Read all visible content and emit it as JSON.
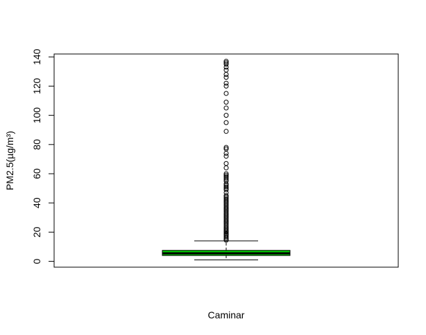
{
  "chart_data": {
    "type": "boxplot",
    "title": "",
    "xlabel": "Caminar",
    "ylabel": "PM2.5(µg/m³)",
    "ylim": [
      -4,
      142
    ],
    "yticks": [
      0,
      20,
      40,
      60,
      80,
      100,
      120,
      140
    ],
    "box_fill": "#00cc00",
    "box": {
      "lower_whisker": 1,
      "q1": 4,
      "median": 5.5,
      "q3": 7.5,
      "upper_whisker": 14
    },
    "outliers": [
      14.5,
      15.2,
      16,
      17,
      18,
      18.8,
      19.5,
      20.3,
      21,
      22,
      23,
      24,
      25,
      26,
      27,
      28,
      29,
      30,
      31,
      32,
      33,
      34,
      35,
      36,
      37,
      38,
      39,
      40,
      41,
      42,
      43,
      44,
      45,
      47,
      49,
      50,
      51,
      52,
      53,
      55,
      56,
      57,
      58,
      59,
      60,
      64,
      67,
      72,
      74,
      77,
      78,
      89,
      95,
      100,
      105,
      109,
      115,
      120,
      122,
      126,
      128,
      131,
      133,
      135,
      136,
      137
    ]
  }
}
